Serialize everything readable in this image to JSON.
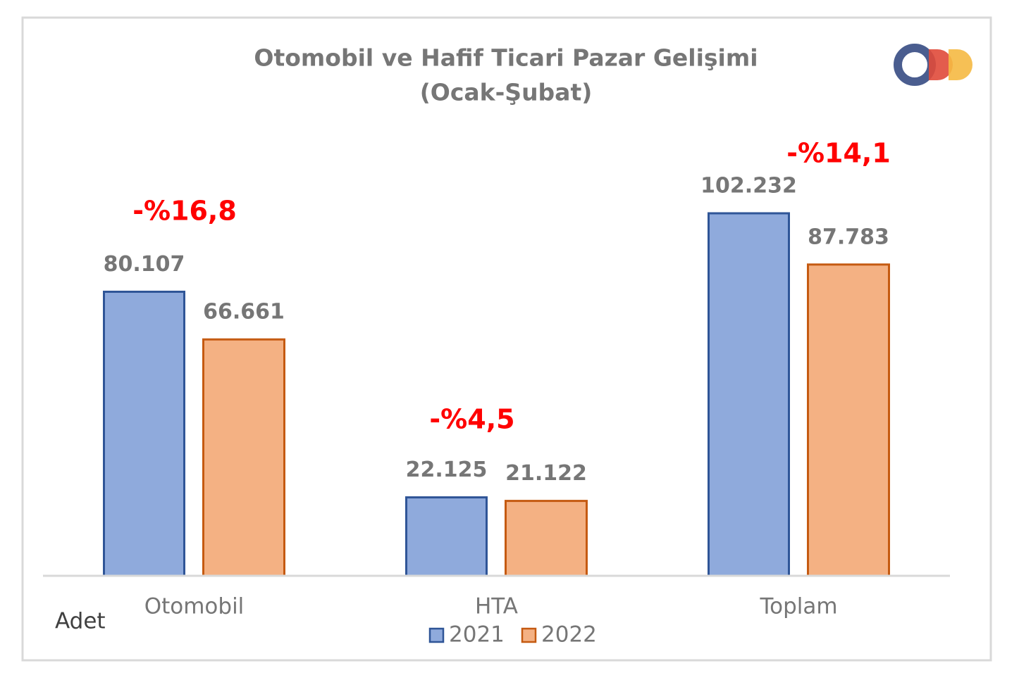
{
  "chart_data": {
    "type": "bar",
    "title": "Otomobil ve Hafif Ticari Pazar Gelişimi",
    "subtitle": "(Ocak-Şubat)",
    "y_label": "Adet",
    "categories": [
      "Otomobil",
      "HTA",
      "Toplam"
    ],
    "series": [
      {
        "name": "2021",
        "color": "#8faadc",
        "edge_color": "#2f5597",
        "values": [
          80107,
          22125,
          102232
        ],
        "value_labels": [
          "80.107",
          "22.125",
          "102.232"
        ]
      },
      {
        "name": "2022",
        "color": "#f4b183",
        "edge_color": "#c55a11",
        "values": [
          66661,
          21122,
          87783
        ],
        "value_labels": [
          "66.661",
          "21.122",
          "87.783"
        ]
      }
    ],
    "annotations": [
      "-%16,8",
      "-%4,5",
      "-%14,1"
    ],
    "annotation_color": "#ff0000",
    "legend": "bottom"
  }
}
